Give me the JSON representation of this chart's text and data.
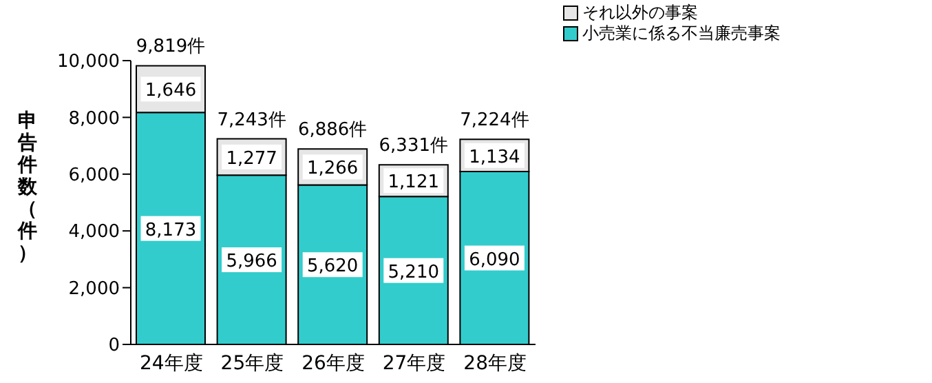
{
  "chart_data": {
    "type": "bar",
    "stacked": true,
    "ylabel": "申告件数（件）",
    "categories": [
      "24年度",
      "25年度",
      "26年度",
      "27年度",
      "28年度"
    ],
    "series": [
      {
        "name": "小売業に係る不当廉売事案",
        "color": "#33cccc",
        "values": [
          8173,
          5966,
          5620,
          5210,
          6090
        ],
        "value_labels": [
          "8,173",
          "5,966",
          "5,620",
          "5,210",
          "6,090"
        ]
      },
      {
        "name": "それ以外の事案",
        "color": "#e6e6e6",
        "values": [
          1646,
          1277,
          1266,
          1121,
          1134
        ],
        "value_labels": [
          "1,646",
          "1,277",
          "1,266",
          "1,121",
          "1,134"
        ]
      }
    ],
    "totals": [
      "9,819件",
      "7,243件",
      "6,886件",
      "6,331件",
      "7,224件"
    ],
    "ylim": [
      0,
      10000
    ],
    "yticks": [
      {
        "value": 0,
        "label": "0"
      },
      {
        "value": 2000,
        "label": "2,000"
      },
      {
        "value": 4000,
        "label": "4,000"
      },
      {
        "value": 6000,
        "label": "6,000"
      },
      {
        "value": 8000,
        "label": "8,000"
      },
      {
        "value": 10000,
        "label": "10,000"
      }
    ],
    "grid": false,
    "legend": "top right"
  }
}
